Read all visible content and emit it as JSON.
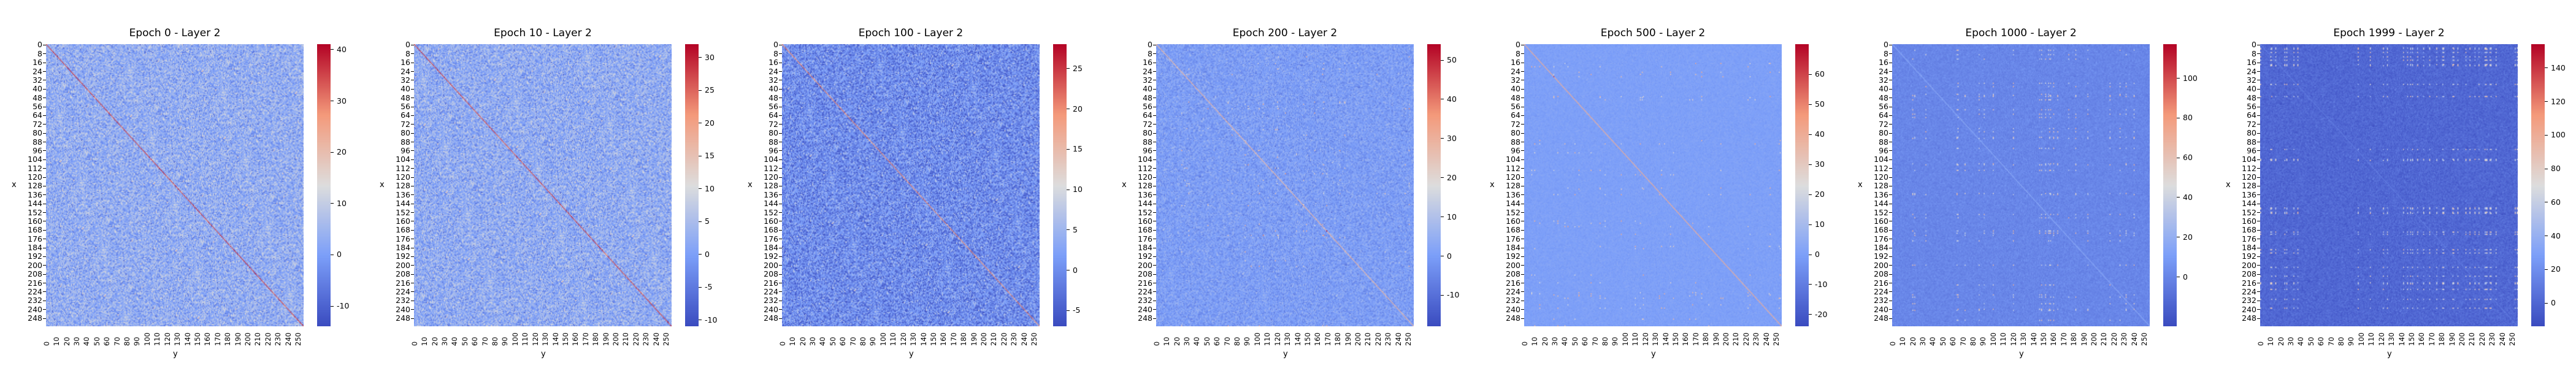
{
  "figure": {
    "title": "",
    "colormap": "coolwarm"
  },
  "chart_data": [
    {
      "type": "heatmap",
      "title": "Epoch 0 - Layer 2",
      "xlabel": "y",
      "ylabel": "x",
      "matrix_size": 256,
      "yticks": [
        "0",
        "8",
        "16",
        "24",
        "32",
        "40",
        "48",
        "56",
        "64",
        "72",
        "80",
        "88",
        "96",
        "104",
        "112",
        "120",
        "128",
        "136",
        "144",
        "152",
        "160",
        "168",
        "176",
        "184",
        "192",
        "200",
        "208",
        "216",
        "224",
        "232",
        "240",
        "248"
      ],
      "xticks": [
        "0",
        "10",
        "20",
        "30",
        "40",
        "50",
        "60",
        "70",
        "80",
        "90",
        "100",
        "110",
        "120",
        "130",
        "140",
        "150",
        "160",
        "170",
        "180",
        "190",
        "200",
        "210",
        "220",
        "230",
        "240",
        "250"
      ],
      "colorbar": {
        "vmin": -14,
        "vmax": 41,
        "ticks": [
          -10,
          0,
          10,
          20,
          30,
          40
        ]
      },
      "background_value": 3,
      "noise_std": 4.5,
      "diagonal_value": 35,
      "grid_pattern_strength": 0
    },
    {
      "type": "heatmap",
      "title": "Epoch 10 - Layer 2",
      "xlabel": "y",
      "ylabel": "x",
      "matrix_size": 256,
      "yticks": [
        "0",
        "8",
        "16",
        "24",
        "32",
        "40",
        "48",
        "56",
        "64",
        "72",
        "80",
        "88",
        "96",
        "104",
        "112",
        "120",
        "128",
        "136",
        "144",
        "152",
        "160",
        "168",
        "176",
        "184",
        "192",
        "200",
        "208",
        "216",
        "224",
        "232",
        "240",
        "248"
      ],
      "xticks": [
        "0",
        "10",
        "20",
        "30",
        "40",
        "50",
        "60",
        "70",
        "80",
        "90",
        "100",
        "110",
        "120",
        "130",
        "140",
        "150",
        "160",
        "170",
        "180",
        "190",
        "200",
        "210",
        "220",
        "230",
        "240",
        "250"
      ],
      "colorbar": {
        "vmin": -11,
        "vmax": 32,
        "ticks": [
          -10,
          -5,
          0,
          5,
          10,
          15,
          20,
          25,
          30
        ]
      },
      "background_value": 2,
      "noise_std": 3.5,
      "diagonal_value": 27,
      "grid_pattern_strength": 0
    },
    {
      "type": "heatmap",
      "title": "Epoch 100 - Layer 2",
      "xlabel": "y",
      "ylabel": "x",
      "matrix_size": 256,
      "yticks": [
        "0",
        "8",
        "16",
        "24",
        "32",
        "40",
        "48",
        "56",
        "64",
        "72",
        "80",
        "88",
        "96",
        "104",
        "112",
        "120",
        "128",
        "136",
        "144",
        "152",
        "160",
        "168",
        "176",
        "184",
        "192",
        "200",
        "208",
        "216",
        "224",
        "232",
        "240",
        "248"
      ],
      "xticks": [
        "0",
        "10",
        "20",
        "30",
        "40",
        "50",
        "60",
        "70",
        "80",
        "90",
        "100",
        "110",
        "120",
        "130",
        "140",
        "150",
        "160",
        "170",
        "180",
        "190",
        "200",
        "210",
        "220",
        "230",
        "240",
        "250"
      ],
      "colorbar": {
        "vmin": -7,
        "vmax": 28,
        "ticks": [
          -5,
          0,
          5,
          10,
          15,
          20,
          25
        ]
      },
      "background_value": 0,
      "noise_std": 3.2,
      "diagonal_value": 20,
      "grid_pattern_strength": 0
    },
    {
      "type": "heatmap",
      "title": "Epoch 200 - Layer 2",
      "xlabel": "y",
      "ylabel": "x",
      "matrix_size": 256,
      "yticks": [
        "0",
        "8",
        "16",
        "24",
        "32",
        "40",
        "48",
        "56",
        "64",
        "72",
        "80",
        "88",
        "96",
        "104",
        "112",
        "120",
        "128",
        "136",
        "144",
        "152",
        "160",
        "168",
        "176",
        "184",
        "192",
        "200",
        "208",
        "216",
        "224",
        "232",
        "240",
        "248"
      ],
      "xticks": [
        "0",
        "10",
        "20",
        "30",
        "40",
        "50",
        "60",
        "70",
        "80",
        "90",
        "100",
        "110",
        "120",
        "130",
        "140",
        "150",
        "160",
        "170",
        "180",
        "190",
        "200",
        "210",
        "220",
        "230",
        "240",
        "250"
      ],
      "colorbar": {
        "vmin": -18,
        "vmax": 54,
        "ticks": [
          -10,
          0,
          10,
          20,
          30,
          40,
          50
        ]
      },
      "background_value": 0,
      "noise_std": 3.2,
      "diagonal_value": 28,
      "grid_pattern_strength": 0.15
    },
    {
      "type": "heatmap",
      "title": "Epoch 500 - Layer 2",
      "xlabel": "y",
      "ylabel": "x",
      "matrix_size": 256,
      "yticks": [
        "0",
        "8",
        "16",
        "24",
        "32",
        "40",
        "48",
        "56",
        "64",
        "72",
        "80",
        "88",
        "96",
        "104",
        "112",
        "120",
        "128",
        "136",
        "144",
        "152",
        "160",
        "168",
        "176",
        "184",
        "192",
        "200",
        "208",
        "216",
        "224",
        "232",
        "240",
        "248"
      ],
      "xticks": [
        "0",
        "10",
        "20",
        "30",
        "40",
        "50",
        "60",
        "70",
        "80",
        "90",
        "100",
        "110",
        "120",
        "130",
        "140",
        "150",
        "160",
        "170",
        "180",
        "190",
        "200",
        "210",
        "220",
        "230",
        "240",
        "250"
      ],
      "colorbar": {
        "vmin": -24,
        "vmax": 70,
        "ticks": [
          -20,
          -10,
          0,
          10,
          20,
          30,
          40,
          50,
          60
        ]
      },
      "background_value": 0,
      "noise_std": 1.2,
      "diagonal_value": 40,
      "grid_pattern_strength": 0.2
    },
    {
      "type": "heatmap",
      "title": "Epoch 1000 - Layer 2",
      "xlabel": "y",
      "ylabel": "x",
      "matrix_size": 256,
      "yticks": [
        "0",
        "8",
        "16",
        "24",
        "32",
        "40",
        "48",
        "56",
        "64",
        "72",
        "80",
        "88",
        "96",
        "104",
        "112",
        "120",
        "128",
        "136",
        "144",
        "152",
        "160",
        "168",
        "176",
        "184",
        "192",
        "200",
        "208",
        "216",
        "224",
        "232",
        "240",
        "248"
      ],
      "xticks": [
        "0",
        "10",
        "20",
        "30",
        "40",
        "50",
        "60",
        "70",
        "80",
        "90",
        "100",
        "110",
        "120",
        "130",
        "140",
        "150",
        "160",
        "170",
        "180",
        "190",
        "200",
        "210",
        "220",
        "230",
        "240",
        "250"
      ],
      "colorbar": {
        "vmin": -25,
        "vmax": 117,
        "ticks": [
          0,
          20,
          40,
          60,
          80,
          100
        ]
      },
      "background_value": 0,
      "noise_std": 2.5,
      "diagonal_value": 15,
      "grid_pattern_strength": 0.55
    },
    {
      "type": "heatmap",
      "title": "Epoch 1999 - Layer 2",
      "xlabel": "y",
      "ylabel": "x",
      "matrix_size": 256,
      "yticks": [
        "0",
        "8",
        "16",
        "24",
        "32",
        "40",
        "48",
        "56",
        "64",
        "72",
        "80",
        "88",
        "96",
        "104",
        "112",
        "120",
        "128",
        "136",
        "144",
        "152",
        "160",
        "168",
        "176",
        "184",
        "192",
        "200",
        "208",
        "216",
        "224",
        "232",
        "240",
        "248"
      ],
      "xticks": [
        "0",
        "10",
        "20",
        "30",
        "40",
        "50",
        "60",
        "70",
        "80",
        "90",
        "100",
        "110",
        "120",
        "130",
        "140",
        "150",
        "160",
        "170",
        "180",
        "190",
        "200",
        "210",
        "220",
        "230",
        "240",
        "250"
      ],
      "colorbar": {
        "vmin": -14,
        "vmax": 154,
        "ticks": [
          0,
          20,
          40,
          60,
          80,
          100,
          120,
          140
        ]
      },
      "background_value": 0,
      "noise_std": 4,
      "diagonal_value": 10,
      "grid_pattern_strength": 0.9
    }
  ]
}
